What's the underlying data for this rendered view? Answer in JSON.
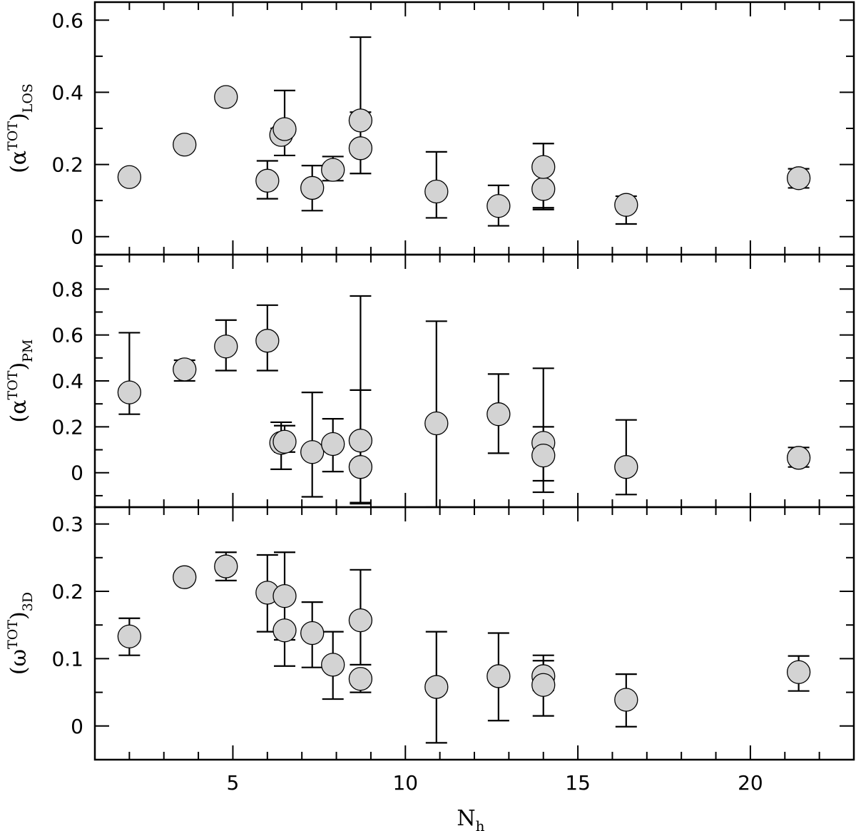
{
  "chart_data": [
    {
      "type": "scatter",
      "ylabel_base": "(α",
      "ylabel_sup": "TOT",
      "ylabel_close": ")",
      "ylabel_sub": "LOS",
      "ylim": [
        -0.05,
        0.65
      ],
      "yticks": [
        0,
        0.2,
        0.4,
        0.6
      ],
      "yticklabels": [
        "0",
        "0.2",
        "0.4",
        "0.6"
      ],
      "points": [
        {
          "x": 2.0,
          "y": 0.165,
          "lo": null,
          "hi": null
        },
        {
          "x": 3.6,
          "y": 0.255,
          "lo": null,
          "hi": null
        },
        {
          "x": 4.8,
          "y": 0.387,
          "lo": null,
          "hi": null
        },
        {
          "x": 6.0,
          "y": 0.155,
          "lo": 0.105,
          "hi": 0.21
        },
        {
          "x": 6.4,
          "y": 0.282,
          "lo": null,
          "hi": 0.3
        },
        {
          "x": 6.5,
          "y": 0.298,
          "lo": 0.225,
          "hi": 0.405
        },
        {
          "x": 7.3,
          "y": 0.135,
          "lo": 0.072,
          "hi": 0.197
        },
        {
          "x": 7.9,
          "y": 0.185,
          "lo": 0.155,
          "hi": 0.222
        },
        {
          "x": 8.7,
          "y": 0.245,
          "lo": 0.175,
          "hi": 0.345
        },
        {
          "x": 8.7,
          "y": 0.322,
          "lo": null,
          "hi": 0.553
        },
        {
          "x": 10.9,
          "y": 0.125,
          "lo": 0.052,
          "hi": 0.235
        },
        {
          "x": 12.7,
          "y": 0.085,
          "lo": 0.03,
          "hi": 0.142
        },
        {
          "x": 14.0,
          "y": 0.132,
          "lo": 0.08,
          "hi": null
        },
        {
          "x": 14.0,
          "y": 0.193,
          "lo": 0.075,
          "hi": 0.258
        },
        {
          "x": 16.4,
          "y": 0.088,
          "lo": 0.035,
          "hi": 0.112
        },
        {
          "x": 21.4,
          "y": 0.162,
          "lo": 0.135,
          "hi": 0.188
        }
      ]
    },
    {
      "type": "scatter",
      "ylabel_base": "(α",
      "ylabel_sup": "TOT",
      "ylabel_close": ")",
      "ylabel_sub": "PM",
      "ylim": [
        -0.15,
        0.95
      ],
      "yticks": [
        0,
        0.2,
        0.4,
        0.6,
        0.8
      ],
      "yticklabels": [
        "0",
        "0.2",
        "0.4",
        "0.6",
        "0.8"
      ],
      "points": [
        {
          "x": 2.0,
          "y": 0.35,
          "lo": 0.255,
          "hi": 0.61
        },
        {
          "x": 3.6,
          "y": 0.45,
          "lo": 0.4,
          "hi": 0.49
        },
        {
          "x": 4.8,
          "y": 0.55,
          "lo": 0.445,
          "hi": 0.665
        },
        {
          "x": 6.0,
          "y": 0.575,
          "lo": 0.445,
          "hi": 0.73
        },
        {
          "x": 6.4,
          "y": 0.13,
          "lo": 0.015,
          "hi": 0.22
        },
        {
          "x": 6.5,
          "y": 0.135,
          "lo": 0.09,
          "hi": 0.205
        },
        {
          "x": 7.3,
          "y": 0.09,
          "lo": -0.105,
          "hi": 0.35
        },
        {
          "x": 7.9,
          "y": 0.125,
          "lo": 0.005,
          "hi": 0.235
        },
        {
          "x": 8.7,
          "y": 0.14,
          "lo": -0.135,
          "hi": 0.77
        },
        {
          "x": 8.7,
          "y": 0.025,
          "lo": -0.13,
          "hi": 0.36
        },
        {
          "x": 10.9,
          "y": 0.215,
          "lo": -0.15,
          "hi": 0.66
        },
        {
          "x": 12.7,
          "y": 0.255,
          "lo": 0.085,
          "hi": 0.43
        },
        {
          "x": 14.0,
          "y": 0.13,
          "lo": -0.035,
          "hi": 0.455
        },
        {
          "x": 14.0,
          "y": 0.075,
          "lo": -0.085,
          "hi": 0.2
        },
        {
          "x": 16.4,
          "y": 0.025,
          "lo": -0.095,
          "hi": 0.23
        },
        {
          "x": 21.4,
          "y": 0.065,
          "lo": 0.025,
          "hi": 0.11
        }
      ]
    },
    {
      "type": "scatter",
      "ylabel_base": "(ω",
      "ylabel_sup": "TOT",
      "ylabel_close": ")",
      "ylabel_sub": "3D",
      "ylim": [
        -0.05,
        0.325
      ],
      "yticks": [
        0,
        0.1,
        0.2,
        0.3
      ],
      "yticklabels": [
        "0",
        "0.1",
        "0.2",
        "0.3"
      ],
      "xlabel_base": "N",
      "xlabel_sub": "h",
      "xlim": [
        1.0,
        23.0
      ],
      "xticks": [
        5,
        10,
        15,
        20
      ],
      "xticklabels": [
        "5",
        "10",
        "15",
        "20"
      ],
      "points": [
        {
          "x": 2.0,
          "y": 0.133,
          "lo": 0.105,
          "hi": 0.16
        },
        {
          "x": 3.6,
          "y": 0.221,
          "lo": null,
          "hi": null
        },
        {
          "x": 4.8,
          "y": 0.237,
          "lo": 0.216,
          "hi": 0.258
        },
        {
          "x": 6.0,
          "y": 0.198,
          "lo": 0.14,
          "hi": 0.254
        },
        {
          "x": 6.5,
          "y": 0.193,
          "lo": 0.128,
          "hi": 0.258
        },
        {
          "x": 6.5,
          "y": 0.142,
          "lo": 0.089,
          "hi": null
        },
        {
          "x": 7.3,
          "y": 0.138,
          "lo": 0.087,
          "hi": 0.184
        },
        {
          "x": 7.9,
          "y": 0.091,
          "lo": 0.04,
          "hi": 0.14
        },
        {
          "x": 8.7,
          "y": 0.157,
          "lo": 0.091,
          "hi": 0.232
        },
        {
          "x": 8.7,
          "y": 0.07,
          "lo": 0.05,
          "hi": null
        },
        {
          "x": 10.9,
          "y": 0.058,
          "lo": -0.025,
          "hi": 0.14
        },
        {
          "x": 12.7,
          "y": 0.074,
          "lo": 0.008,
          "hi": 0.138
        },
        {
          "x": 14.0,
          "y": 0.074,
          "lo": 0.053,
          "hi": 0.105
        },
        {
          "x": 14.0,
          "y": 0.061,
          "lo": 0.015,
          "hi": 0.097
        },
        {
          "x": 16.4,
          "y": 0.039,
          "lo": -0.001,
          "hi": 0.077
        },
        {
          "x": 21.4,
          "y": 0.08,
          "lo": 0.052,
          "hi": 0.104
        }
      ]
    }
  ]
}
